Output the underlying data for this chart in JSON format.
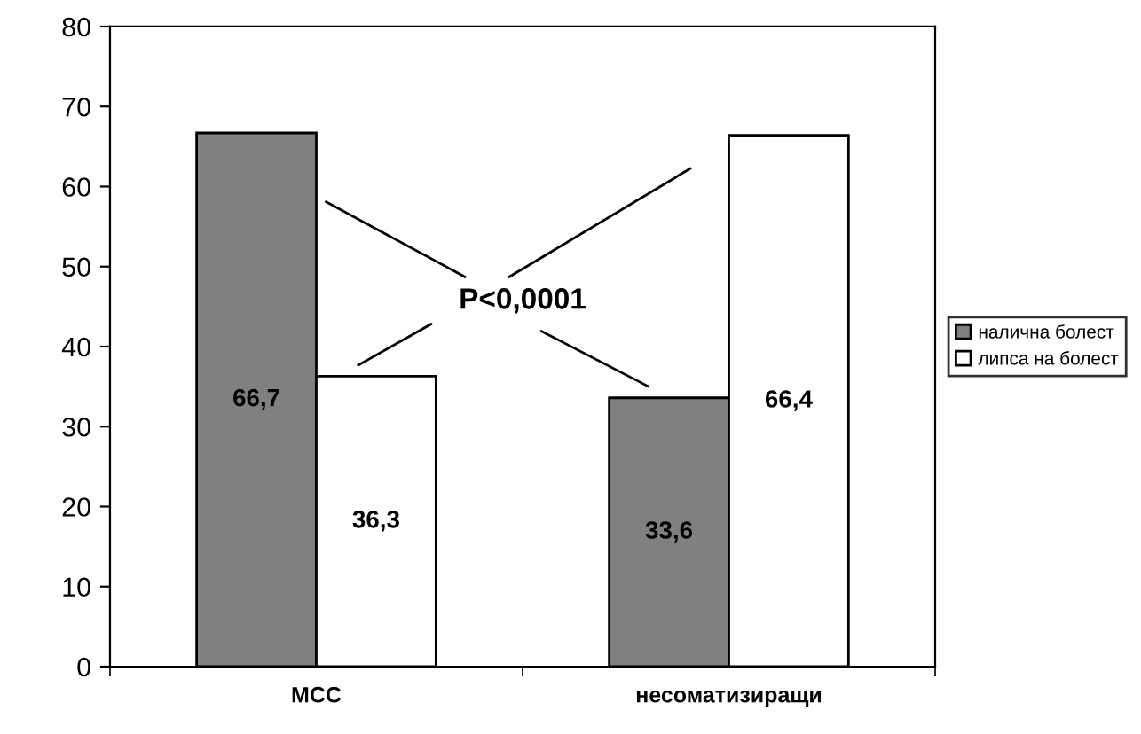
{
  "chart_data": {
    "type": "bar",
    "categories": [
      "МСС",
      "несоматизиращи"
    ],
    "series": [
      {
        "name": "налична болест",
        "color": "#808080",
        "values": [
          66.7,
          33.6
        ],
        "value_labels": [
          "66,7",
          "33,6"
        ]
      },
      {
        "name": "липса на болест",
        "color": "#ffffff",
        "values": [
          36.3,
          66.4
        ],
        "value_labels": [
          "36,3",
          "66,4"
        ]
      }
    ],
    "ylim": [
      0,
      80
    ],
    "yticks": [
      0,
      10,
      20,
      30,
      40,
      50,
      60,
      70,
      80
    ],
    "annotations": [
      "P<0,0001"
    ],
    "legend": "right",
    "grid": false
  }
}
